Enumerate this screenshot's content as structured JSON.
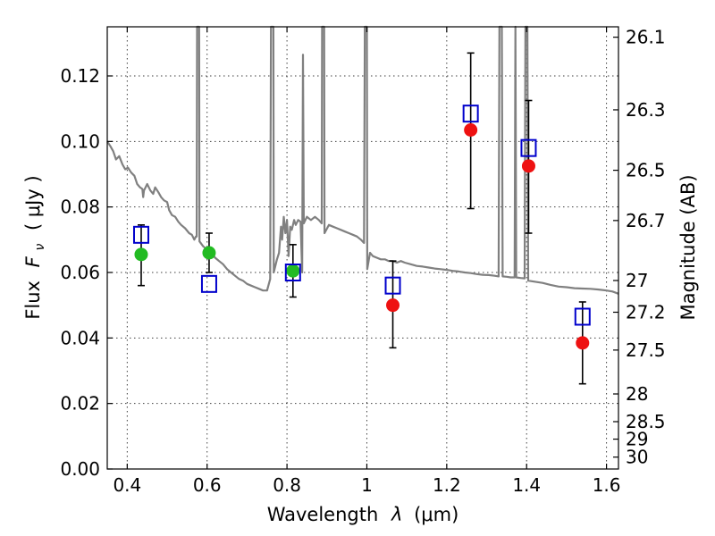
{
  "chart_data": {
    "type": "scatter",
    "xlabel_text": "Wavelength",
    "xlabel_math": "λ",
    "xlabel_unit": "(μm)",
    "ylabel_text": "Flux",
    "ylabel_math": "F",
    "ylabel_sub": "ν",
    "ylabel_unit": "( μJy )",
    "y2label": "Magnitude (AB)",
    "xlim": [
      0.35,
      1.63
    ],
    "ylim": [
      0.0,
      0.135
    ],
    "xticks": [
      0.4,
      0.6,
      0.8,
      1.0,
      1.2,
      1.4,
      1.6
    ],
    "xtick_labels": [
      "0.4",
      "0.6",
      "0.8",
      "1",
      "1.2",
      "1.4",
      "1.6"
    ],
    "yticks": [
      0.0,
      0.02,
      0.04,
      0.06,
      0.08,
      0.1,
      0.12
    ],
    "ytick_labels": [
      "0.00",
      "0.02",
      "0.04",
      "0.06",
      "0.08",
      "0.10",
      "0.12"
    ],
    "mag_ticks": [
      26.1,
      26.3,
      26.5,
      26.7,
      27.0,
      27.2,
      27.5,
      28.0,
      28.5,
      29.0,
      30.0
    ],
    "mag_tick_labels": [
      "26.1",
      "26.3",
      "26.5",
      "26.7",
      "27",
      "27.2",
      "27.5",
      "28",
      "28.5",
      "29",
      "30"
    ],
    "grid": true,
    "colors": {
      "sed": "#808080",
      "model": "#0000cc",
      "detected": "#22bb22",
      "upper": "#ee1111",
      "errorbar": "#000000"
    },
    "model_points": [
      {
        "x": 0.435,
        "y": 0.0715
      },
      {
        "x": 0.605,
        "y": 0.0565
      },
      {
        "x": 0.815,
        "y": 0.06
      },
      {
        "x": 1.065,
        "y": 0.056
      },
      {
        "x": 1.26,
        "y": 0.1085
      },
      {
        "x": 1.405,
        "y": 0.098
      },
      {
        "x": 1.54,
        "y": 0.0465
      }
    ],
    "detections": [
      {
        "x": 0.435,
        "y": 0.0655,
        "lo": 0.056,
        "hi": 0.0745
      },
      {
        "x": 0.605,
        "y": 0.066,
        "lo": 0.06,
        "hi": 0.072
      },
      {
        "x": 0.815,
        "y": 0.0605,
        "lo": 0.0525,
        "hi": 0.0685
      }
    ],
    "nir_points": [
      {
        "x": 1.065,
        "y": 0.05,
        "lo": 0.037,
        "hi": 0.0635
      },
      {
        "x": 1.26,
        "y": 0.1035,
        "lo": 0.0795,
        "hi": 0.127
      },
      {
        "x": 1.405,
        "y": 0.0925,
        "lo": 0.072,
        "hi": 0.1125
      },
      {
        "x": 1.54,
        "y": 0.0385,
        "lo": 0.026,
        "hi": 0.051
      }
    ],
    "sed_curve": [
      [
        0.35,
        0.1
      ],
      [
        0.358,
        0.0985
      ],
      [
        0.365,
        0.097
      ],
      [
        0.372,
        0.0945
      ],
      [
        0.38,
        0.0955
      ],
      [
        0.388,
        0.093
      ],
      [
        0.395,
        0.0915
      ],
      [
        0.402,
        0.092
      ],
      [
        0.41,
        0.0905
      ],
      [
        0.418,
        0.0895
      ],
      [
        0.425,
        0.087
      ],
      [
        0.432,
        0.086
      ],
      [
        0.438,
        0.0855
      ],
      [
        0.44,
        0.083
      ],
      [
        0.442,
        0.085
      ],
      [
        0.45,
        0.087
      ],
      [
        0.458,
        0.085
      ],
      [
        0.465,
        0.084
      ],
      [
        0.47,
        0.086
      ],
      [
        0.478,
        0.0845
      ],
      [
        0.485,
        0.083
      ],
      [
        0.492,
        0.082
      ],
      [
        0.5,
        0.0815
      ],
      [
        0.505,
        0.079
      ],
      [
        0.512,
        0.0775
      ],
      [
        0.52,
        0.077
      ],
      [
        0.528,
        0.0755
      ],
      [
        0.535,
        0.0745
      ],
      [
        0.545,
        0.0735
      ],
      [
        0.555,
        0.072
      ],
      [
        0.562,
        0.0715
      ],
      [
        0.568,
        0.07
      ],
      [
        0.572,
        0.071
      ],
      [
        0.574,
        0.071
      ],
      [
        0.575,
        0.135
      ],
      [
        0.58,
        0.135
      ],
      [
        0.581,
        0.0695
      ],
      [
        0.59,
        0.068
      ],
      [
        0.6,
        0.067
      ],
      [
        0.61,
        0.066
      ],
      [
        0.62,
        0.0645
      ],
      [
        0.63,
        0.0635
      ],
      [
        0.64,
        0.0625
      ],
      [
        0.65,
        0.061
      ],
      [
        0.66,
        0.06
      ],
      [
        0.67,
        0.059
      ],
      [
        0.68,
        0.058
      ],
      [
        0.69,
        0.0575
      ],
      [
        0.7,
        0.0565
      ],
      [
        0.71,
        0.056
      ],
      [
        0.72,
        0.0555
      ],
      [
        0.73,
        0.055
      ],
      [
        0.74,
        0.0545
      ],
      [
        0.75,
        0.0545
      ],
      [
        0.758,
        0.058
      ],
      [
        0.76,
        0.135
      ],
      [
        0.766,
        0.135
      ],
      [
        0.767,
        0.06
      ],
      [
        0.775,
        0.064
      ],
      [
        0.78,
        0.066
      ],
      [
        0.785,
        0.074
      ],
      [
        0.788,
        0.07
      ],
      [
        0.792,
        0.077
      ],
      [
        0.796,
        0.072
      ],
      [
        0.8,
        0.076
      ],
      [
        0.804,
        0.065
      ],
      [
        0.808,
        0.074
      ],
      [
        0.812,
        0.073
      ],
      [
        0.818,
        0.076
      ],
      [
        0.822,
        0.0745
      ],
      [
        0.828,
        0.076
      ],
      [
        0.834,
        0.0755
      ],
      [
        0.838,
        0.06
      ],
      [
        0.84,
        0.1265
      ],
      [
        0.842,
        0.075
      ],
      [
        0.85,
        0.077
      ],
      [
        0.86,
        0.076
      ],
      [
        0.87,
        0.077
      ],
      [
        0.88,
        0.076
      ],
      [
        0.887,
        0.075
      ],
      [
        0.888,
        0.135
      ],
      [
        0.893,
        0.135
      ],
      [
        0.894,
        0.072
      ],
      [
        0.905,
        0.0745
      ],
      [
        0.915,
        0.074
      ],
      [
        0.925,
        0.0735
      ],
      [
        0.935,
        0.073
      ],
      [
        0.945,
        0.0725
      ],
      [
        0.955,
        0.072
      ],
      [
        0.965,
        0.0715
      ],
      [
        0.975,
        0.071
      ],
      [
        0.985,
        0.07
      ],
      [
        0.993,
        0.069
      ],
      [
        0.995,
        0.135
      ],
      [
        1.0,
        0.135
      ],
      [
        1.001,
        0.061
      ],
      [
        1.008,
        0.066
      ],
      [
        1.015,
        0.065
      ],
      [
        1.025,
        0.0645
      ],
      [
        1.035,
        0.064
      ],
      [
        1.045,
        0.064
      ],
      [
        1.055,
        0.0635
      ],
      [
        1.065,
        0.0635
      ],
      [
        1.075,
        0.063
      ],
      [
        1.085,
        0.0635
      ],
      [
        1.095,
        0.063
      ],
      [
        1.11,
        0.0625
      ],
      [
        1.125,
        0.062
      ],
      [
        1.14,
        0.0618
      ],
      [
        1.155,
        0.0615
      ],
      [
        1.17,
        0.0612
      ],
      [
        1.185,
        0.061
      ],
      [
        1.2,
        0.0608
      ],
      [
        1.215,
        0.0605
      ],
      [
        1.23,
        0.0603
      ],
      [
        1.245,
        0.06
      ],
      [
        1.26,
        0.0598
      ],
      [
        1.275,
        0.0595
      ],
      [
        1.29,
        0.0593
      ],
      [
        1.305,
        0.0592
      ],
      [
        1.32,
        0.059
      ],
      [
        1.33,
        0.0588
      ],
      [
        1.332,
        0.135
      ],
      [
        1.338,
        0.135
      ],
      [
        1.34,
        0.0588
      ],
      [
        1.35,
        0.0587
      ],
      [
        1.36,
        0.0585
      ],
      [
        1.37,
        0.0585
      ],
      [
        1.372,
        0.135
      ],
      [
        1.374,
        0.0585
      ],
      [
        1.385,
        0.0583
      ],
      [
        1.395,
        0.0582
      ],
      [
        1.397,
        0.135
      ],
      [
        1.402,
        0.135
      ],
      [
        1.404,
        0.0575
      ],
      [
        1.42,
        0.0572
      ],
      [
        1.44,
        0.0568
      ],
      [
        1.46,
        0.0562
      ],
      [
        1.48,
        0.0557
      ],
      [
        1.5,
        0.0555
      ],
      [
        1.52,
        0.0552
      ],
      [
        1.54,
        0.0551
      ],
      [
        1.56,
        0.055
      ],
      [
        1.58,
        0.0548
      ],
      [
        1.6,
        0.0545
      ],
      [
        1.615,
        0.0542
      ],
      [
        1.63,
        0.0535
      ]
    ]
  }
}
